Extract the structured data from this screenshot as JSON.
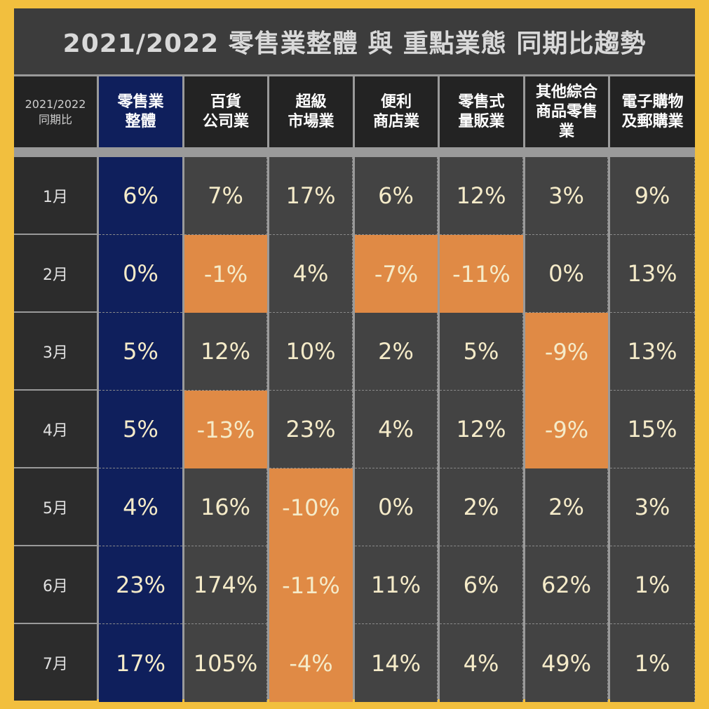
{
  "title": "2021/2022 零售業整體 與 重點業態 同期比趨勢",
  "colors": {
    "background": "#F2BF3E",
    "total_column": "#0f1f5c",
    "negative": "#E08A45",
    "cell": "#434343"
  },
  "chart_data": {
    "type": "table",
    "title": "2021/2022 零售業整體 與 重點業態 同期比趨勢",
    "corner_label": "2021/2022\n同期比",
    "columns": [
      "零售業\n整體",
      "百貨\n公司業",
      "超級\n市場業",
      "便利\n商店業",
      "零售式\n量販業",
      "其他綜合\n商品零售\n業",
      "電子購物\n及郵購業"
    ],
    "rows": [
      {
        "label": "1月",
        "values": [
          "6%",
          "7%",
          "17%",
          "6%",
          "12%",
          "3%",
          "9%"
        ]
      },
      {
        "label": "2月",
        "values": [
          "0%",
          "-1%",
          "4%",
          "-7%",
          "-11%",
          "0%",
          "13%"
        ]
      },
      {
        "label": "3月",
        "values": [
          "5%",
          "12%",
          "10%",
          "2%",
          "5%",
          "-9%",
          "13%"
        ]
      },
      {
        "label": "4月",
        "values": [
          "5%",
          "-13%",
          "23%",
          "4%",
          "12%",
          "-9%",
          "15%"
        ]
      },
      {
        "label": "5月",
        "values": [
          "4%",
          "16%",
          "-10%",
          "0%",
          "2%",
          "2%",
          "3%"
        ]
      },
      {
        "label": "6月",
        "values": [
          "23%",
          "174%",
          "-11%",
          "11%",
          "6%",
          "62%",
          "1%"
        ]
      },
      {
        "label": "7月",
        "values": [
          "17%",
          "105%",
          "-4%",
          "14%",
          "4%",
          "49%",
          "1%"
        ]
      }
    ]
  }
}
